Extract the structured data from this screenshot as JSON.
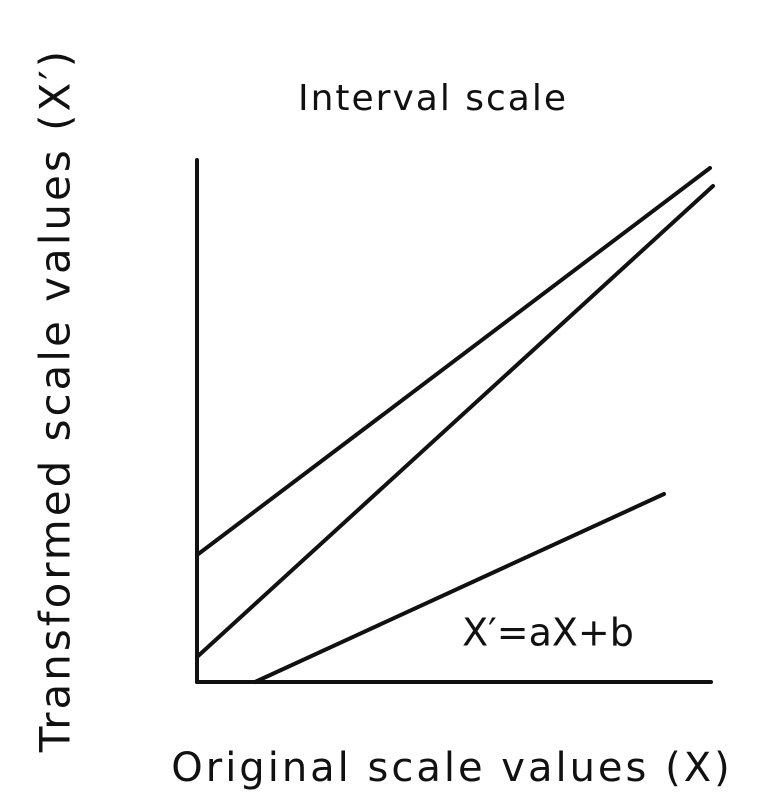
{
  "title": "Interval scale",
  "y_axis_label": "Transformed scale values (X′)",
  "x_axis_label": "Original scale values (X)",
  "equation": "X′=aX+b"
}
